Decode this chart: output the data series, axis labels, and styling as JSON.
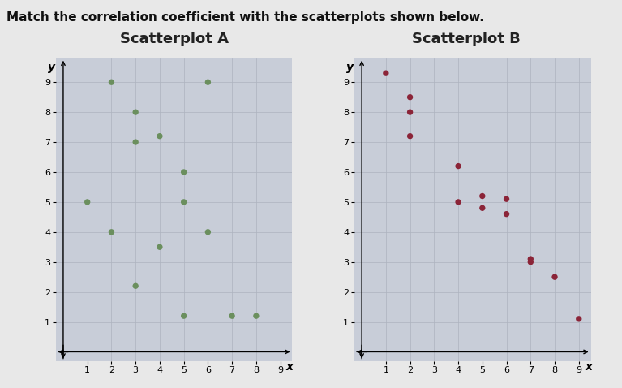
{
  "title": "Match the correlation coefficient with the scatterplots shown below.",
  "title_fontsize": 11,
  "title_fontweight": "bold",
  "plot_A_title": "Scatterplot A",
  "plot_B_title": "Scatterplot B",
  "subplot_title_fontsize": 13,
  "subplot_title_fontweight": "bold",
  "axis_label_fontsize": 10,
  "axis_label_style": "italic",
  "plot_A_x": [
    2,
    1,
    3,
    3,
    4,
    2,
    4,
    5,
    5,
    6,
    3,
    5,
    6,
    7,
    8
  ],
  "plot_A_y": [
    9,
    5,
    8,
    7,
    7.2,
    4,
    3.5,
    6,
    5,
    4,
    2.2,
    1.2,
    9,
    1.2,
    1.2
  ],
  "plot_A_color": "#6b8f5e",
  "plot_A_marker_size": 28,
  "plot_B_x": [
    1,
    2,
    2,
    2,
    4,
    4,
    5,
    5,
    6,
    6,
    7,
    7,
    8,
    9
  ],
  "plot_B_y": [
    9.3,
    8.5,
    8.0,
    7.2,
    6.2,
    5.0,
    5.2,
    4.8,
    5.1,
    4.6,
    3.1,
    3.0,
    2.5,
    1.1
  ],
  "plot_B_color": "#8b2438",
  "plot_B_marker_size": 28,
  "xlim": [
    -0.3,
    9.5
  ],
  "ylim": [
    -0.3,
    9.8
  ],
  "xticks": [
    1,
    2,
    3,
    4,
    5,
    6,
    7,
    8,
    9
  ],
  "yticks": [
    1,
    2,
    3,
    4,
    5,
    6,
    7,
    8,
    9
  ],
  "tick_fontsize": 8,
  "plot_bg_color": "#c8cdd8",
  "fig_bg_color": "#e8e8e8",
  "grid_color": "#adb3bf",
  "grid_linewidth": 0.5
}
